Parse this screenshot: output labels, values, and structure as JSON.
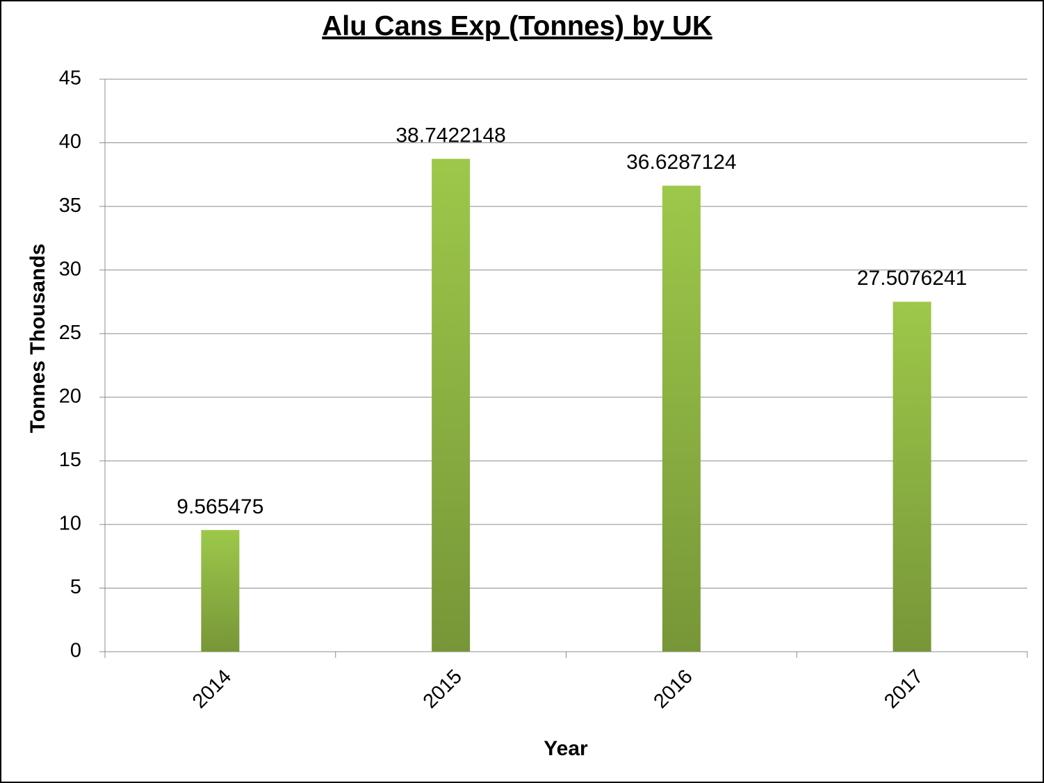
{
  "chart_data": {
    "type": "bar",
    "title": "Alu Cans Exp (Tonnes) by UK",
    "x_label": "Year",
    "y_label": "Tonnes Thousands",
    "categories": [
      "2014",
      "2015",
      "2016",
      "2017"
    ],
    "values": [
      9.565475,
      38.7422148,
      36.6287124,
      27.5076241
    ],
    "color": "#8db543",
    "ylim": [
      0,
      45
    ],
    "yticks": [
      0,
      5,
      10,
      15,
      20,
      25,
      30,
      35,
      40,
      45
    ],
    "grid": true
  }
}
